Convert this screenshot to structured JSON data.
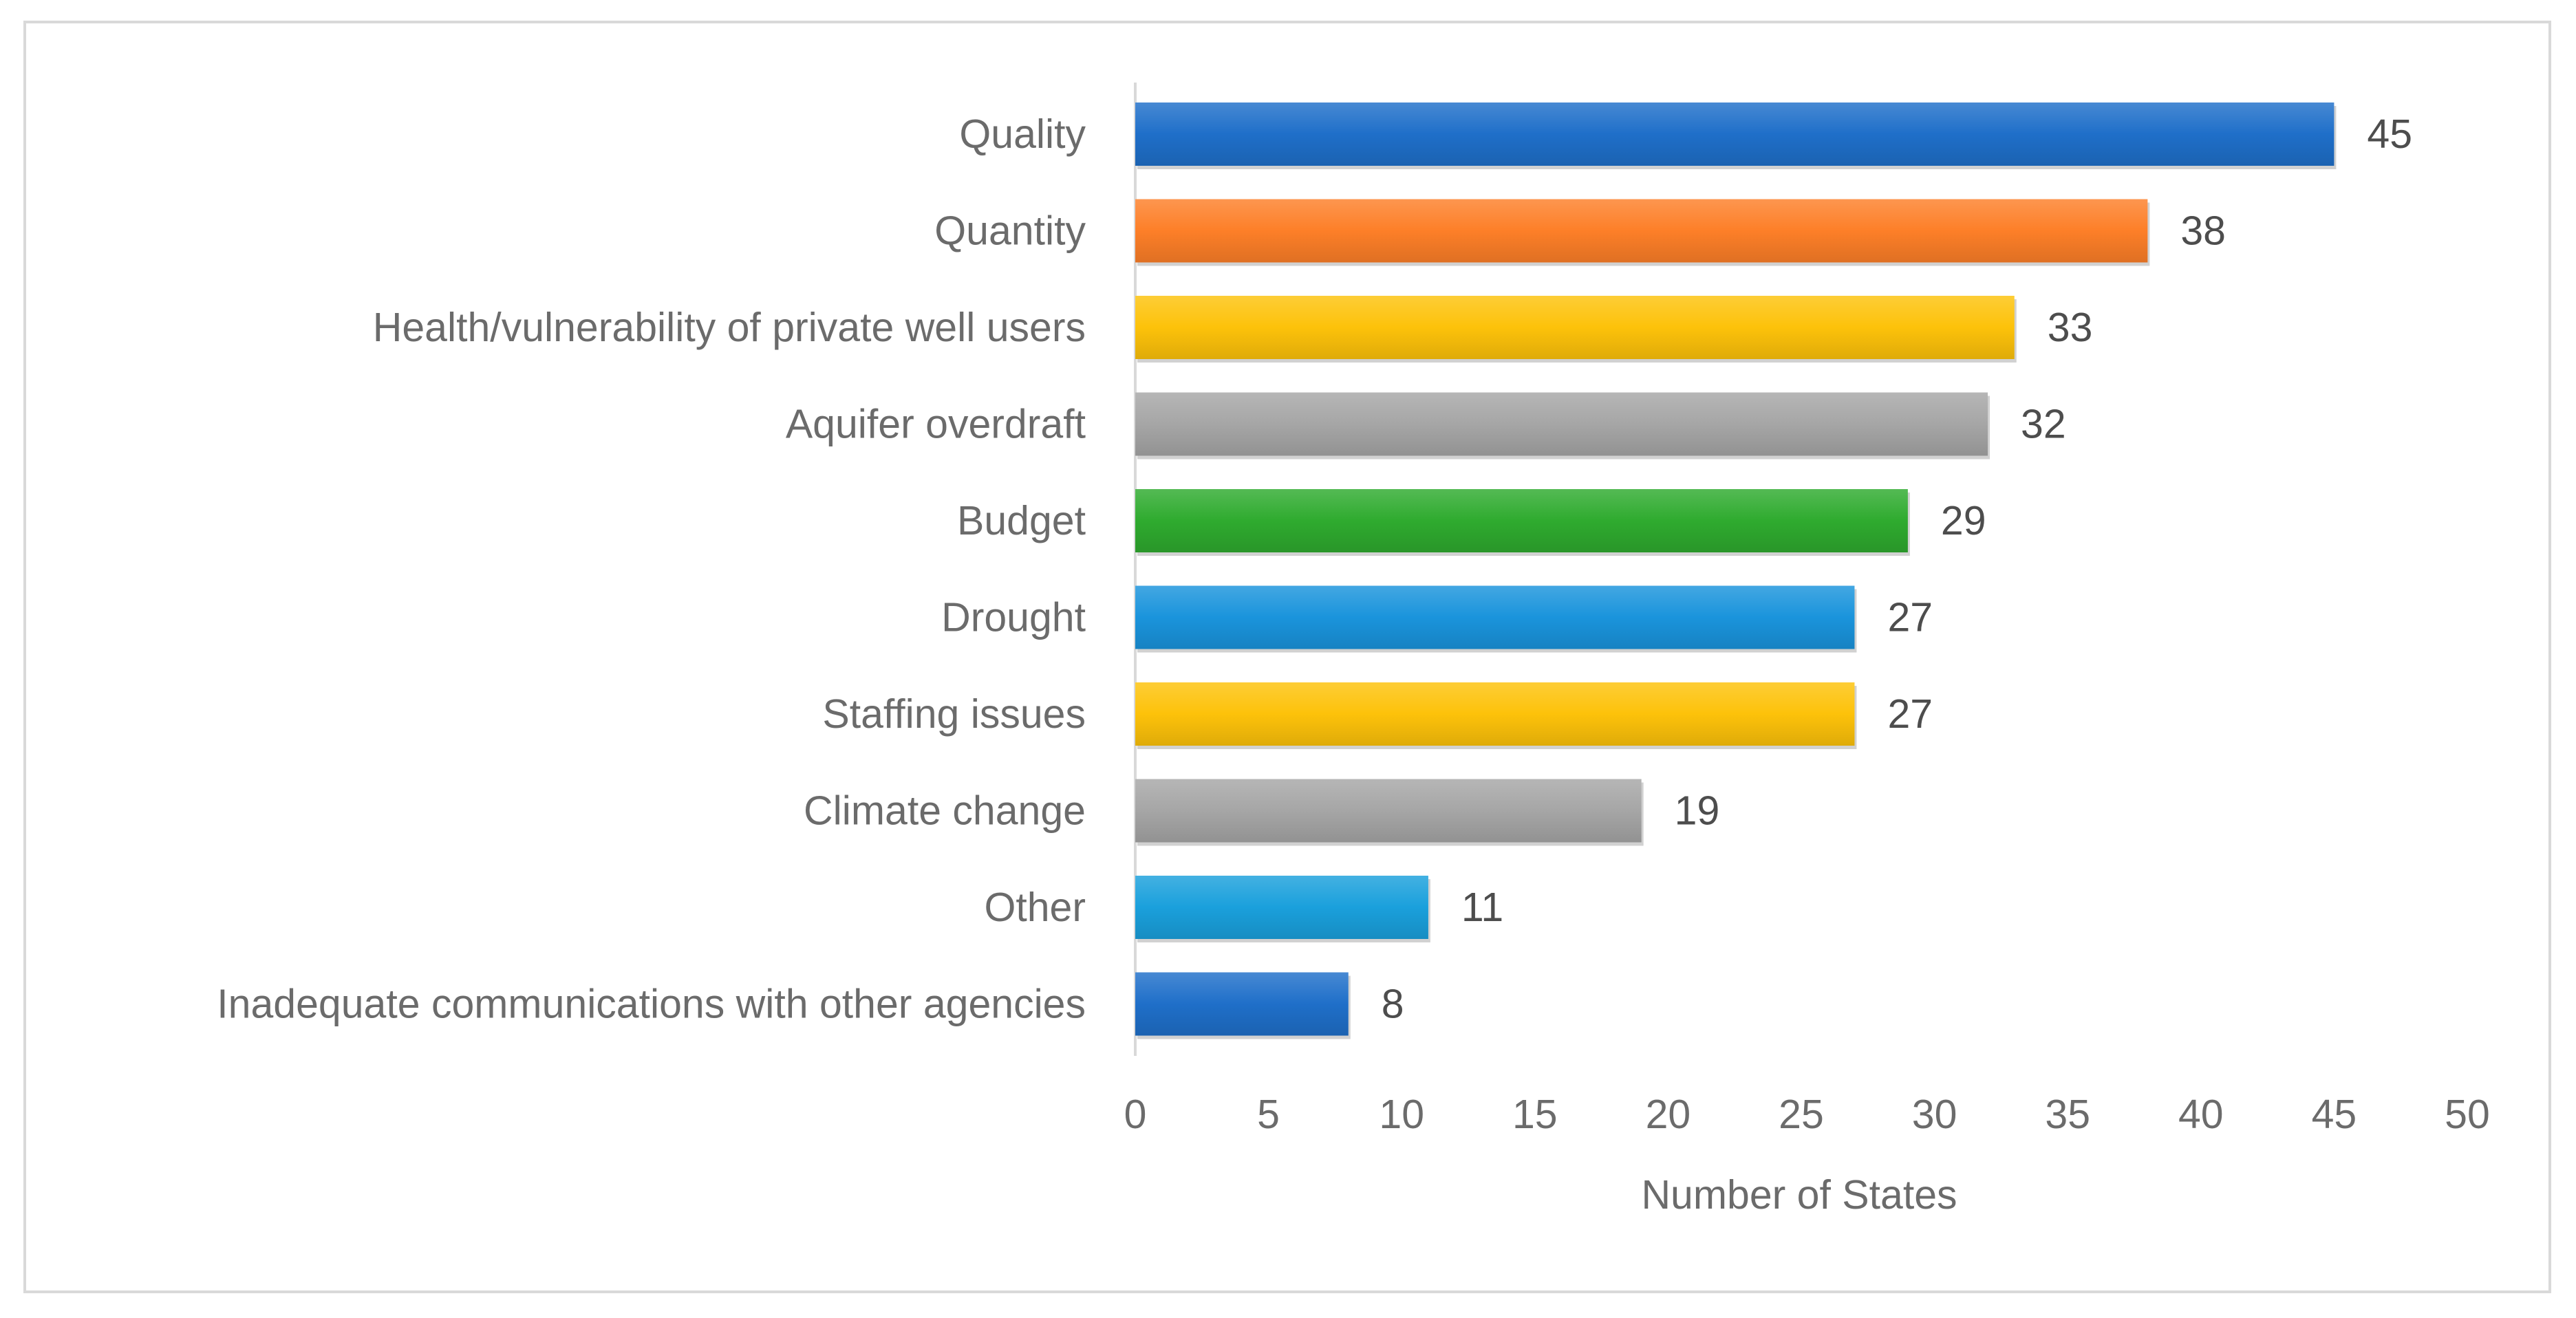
{
  "chart_data": {
    "type": "bar",
    "orientation": "horizontal",
    "title": "",
    "xlabel": "Number of States",
    "ylabel": "",
    "xlim": [
      0,
      50
    ],
    "xticks": [
      0,
      5,
      10,
      15,
      20,
      25,
      30,
      35,
      40,
      45,
      50
    ],
    "grid": false,
    "legend": "none",
    "categories": [
      "Quality",
      "Quantity",
      "Health/vulnerability of private well users",
      "Aquifer overdraft",
      "Budget",
      "Drought",
      "Staffing issues",
      "Climate change",
      "Other",
      "Inadequate communications with other agencies"
    ],
    "values": [
      45,
      38,
      33,
      32,
      29,
      27,
      27,
      19,
      11,
      8
    ],
    "colors": [
      "#1f6fc9",
      "#fd7f28",
      "#fdc20a",
      "#a6a6a6",
      "#2fab2f",
      "#1a94dc",
      "#fdc20a",
      "#a6a6a6",
      "#1aa0dc",
      "#1f6fc9"
    ]
  }
}
